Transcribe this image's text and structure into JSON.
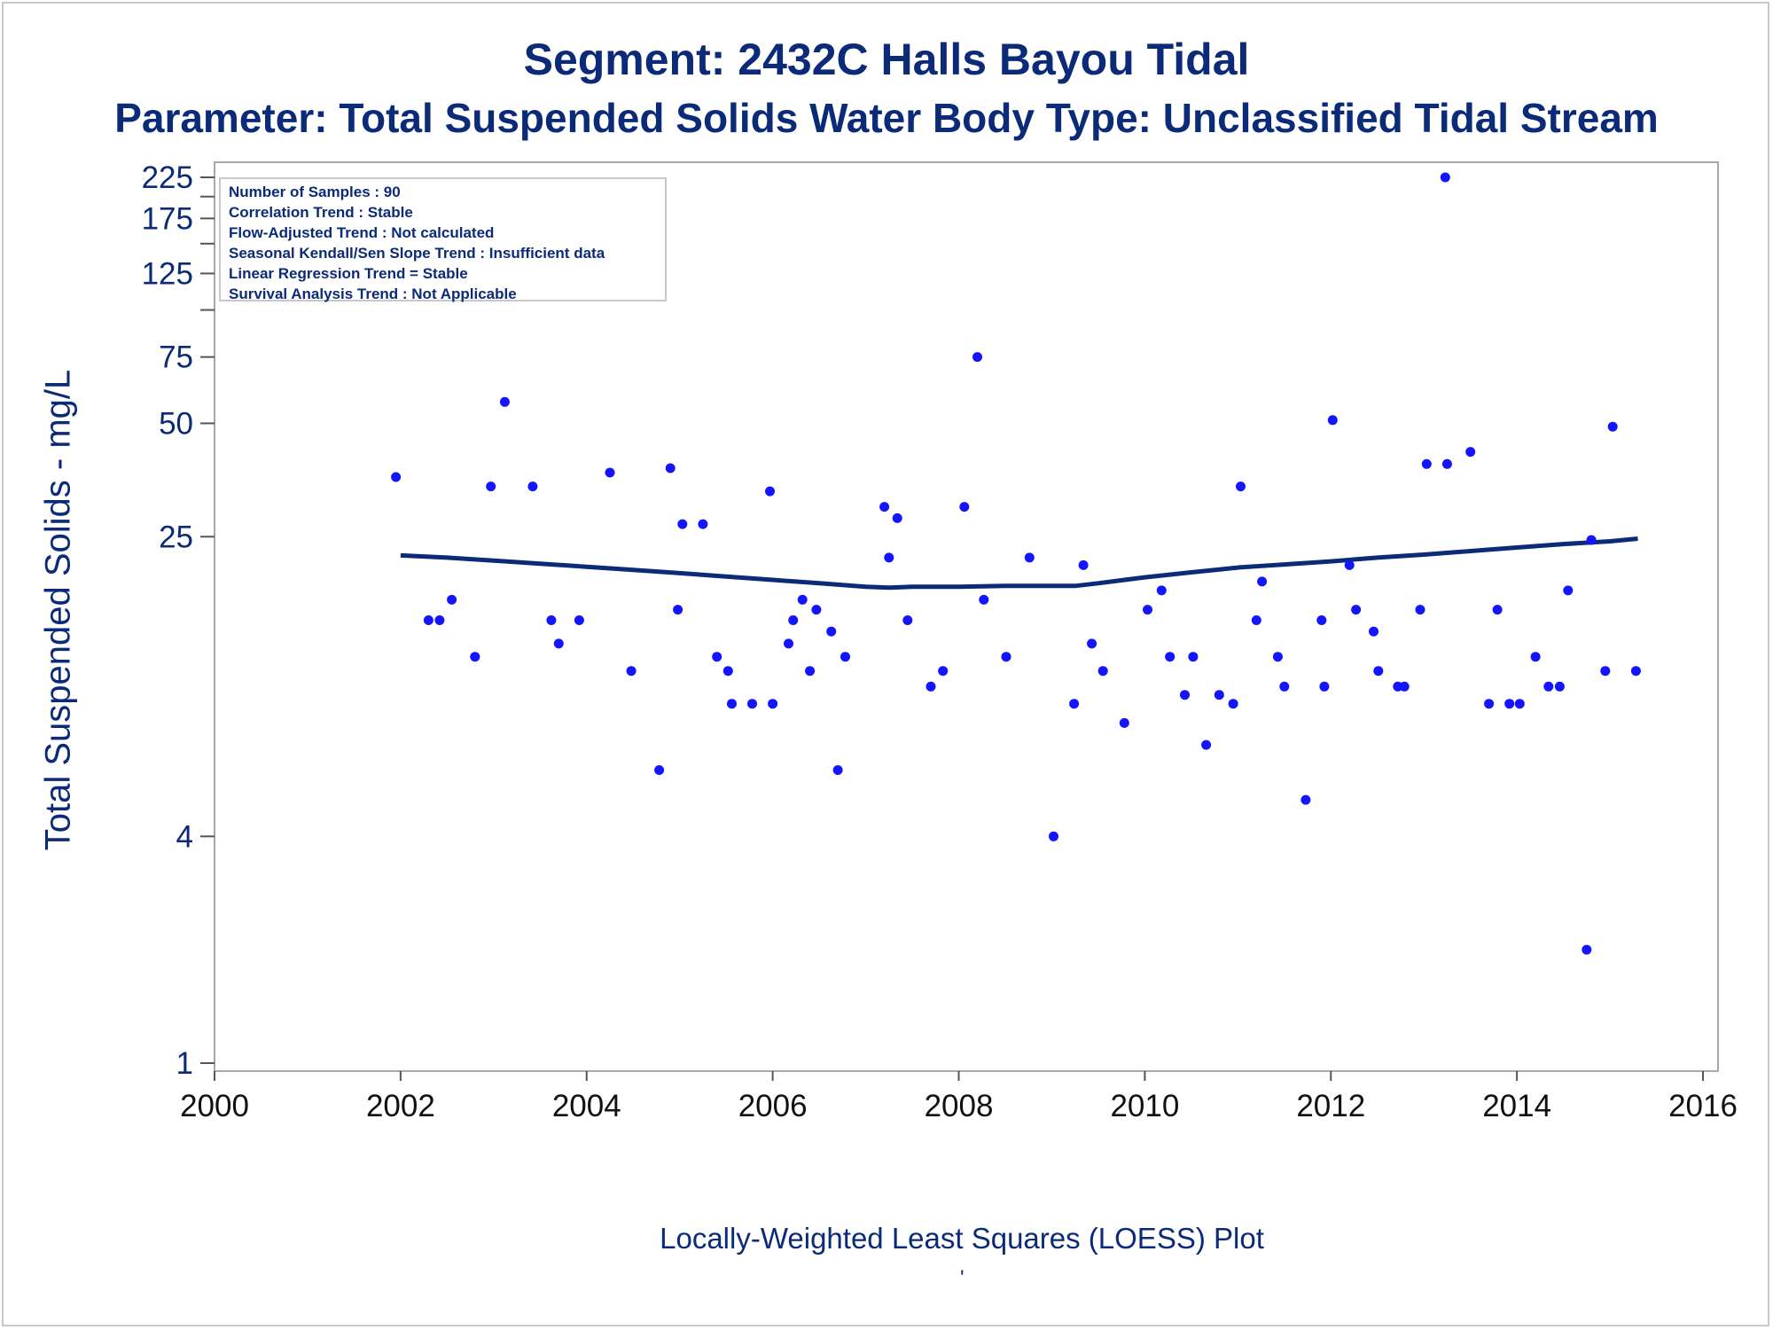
{
  "title": "Segment: 2432C  Halls Bayou Tidal",
  "subtitle": "Parameter: Total Suspended Solids   Water Body Type: Unclassified Tidal Stream",
  "footnote": "Locally-Weighted Least Squares (LOESS) Plot",
  "footnote_mark": "'",
  "stats": [
    "Number of Samples : 90",
    "Correlation Trend : Stable",
    "Flow-Adjusted Trend : Not calculated",
    "Seasonal Kendall/Sen Slope Trend : Insufficient data",
    "Linear Regression Trend = Stable",
    "Survival Analysis Trend : Not Applicable"
  ],
  "colors": {
    "text": "#0b2a78",
    "points": "#1414ff",
    "line": "#0b2a78",
    "frame": "#b0b0b0"
  },
  "chart_data": {
    "type": "scatter",
    "ylabel": "Total Suspended Solids - mg/L",
    "xlabel": "",
    "yscale": "log",
    "xlim": [
      2000,
      2016
    ],
    "ylim": [
      1,
      225
    ],
    "xticks": [
      2000,
      2002,
      2004,
      2006,
      2008,
      2010,
      2012,
      2014,
      2016
    ],
    "yticks": [
      1,
      4,
      25,
      50,
      75,
      125,
      175,
      225
    ],
    "yticks_minor": [
      100,
      150,
      200
    ],
    "grid": false,
    "series": [
      {
        "kind": "points",
        "x": [
          2001.95,
          2002.3,
          2002.42,
          2002.55,
          2002.8,
          2002.97,
          2003.12,
          2003.42,
          2003.62,
          2003.7,
          2003.92,
          2004.25,
          2004.48,
          2004.78,
          2004.9,
          2004.98,
          2005.03,
          2005.25,
          2005.4,
          2005.52,
          2005.56,
          2005.78,
          2005.97,
          2006.0,
          2006.17,
          2006.22,
          2006.32,
          2006.4,
          2006.47,
          2006.63,
          2006.7,
          2006.78,
          2007.2,
          2007.25,
          2007.34,
          2007.45,
          2007.7,
          2007.83,
          2008.06,
          2008.2,
          2008.27,
          2008.51,
          2008.76,
          2009.02,
          2009.24,
          2009.34,
          2009.43,
          2009.55,
          2009.78,
          2010.03,
          2010.18,
          2010.27,
          2010.43,
          2010.52,
          2010.66,
          2010.8,
          2010.95,
          2011.03,
          2011.2,
          2011.26,
          2011.43,
          2011.5,
          2011.73,
          2011.9,
          2011.93,
          2012.02,
          2012.2,
          2012.27,
          2012.46,
          2012.51,
          2012.72,
          2012.79,
          2012.96,
          2013.03,
          2013.23,
          2013.25,
          2013.5,
          2013.7,
          2013.79,
          2013.92,
          2014.03,
          2014.2,
          2014.34,
          2014.46,
          2014.55,
          2014.75,
          2014.8,
          2014.95,
          2015.03,
          2015.28
        ],
        "y": [
          36,
          15,
          15,
          17,
          12,
          34,
          57,
          34,
          15,
          13,
          15,
          37,
          11,
          6,
          38,
          16,
          27,
          27,
          12,
          11,
          9,
          9,
          33,
          9,
          13,
          15,
          17,
          11,
          16,
          14,
          6,
          12,
          30,
          22,
          28,
          15,
          10,
          11,
          30,
          75,
          17,
          12,
          22,
          4,
          9,
          21,
          13,
          11,
          8,
          16,
          18,
          12,
          9.5,
          12,
          7,
          9.5,
          9,
          34,
          15,
          19,
          12,
          10,
          5,
          15,
          10,
          51,
          21,
          16,
          14,
          11,
          10,
          10,
          16,
          39,
          225,
          39,
          42,
          9,
          16,
          9,
          9,
          12,
          10,
          10,
          18,
          2,
          24.5,
          11,
          49,
          11
        ]
      },
      {
        "kind": "loess",
        "x": [
          2002.0,
          2002.5,
          2003.0,
          2003.5,
          2004.0,
          2004.5,
          2005.0,
          2005.5,
          2006.0,
          2006.5,
          2007.0,
          2007.25,
          2007.5,
          2008.0,
          2008.5,
          2009.0,
          2009.25,
          2009.5,
          2010.0,
          2010.5,
          2011.0,
          2011.5,
          2012.0,
          2012.5,
          2013.0,
          2013.5,
          2014.0,
          2014.5,
          2015.0,
          2015.3
        ],
        "y": [
          22.3,
          22.0,
          21.6,
          21.2,
          20.8,
          20.4,
          20.0,
          19.6,
          19.2,
          18.8,
          18.4,
          18.3,
          18.4,
          18.4,
          18.5,
          18.5,
          18.5,
          18.8,
          19.5,
          20.1,
          20.7,
          21.1,
          21.5,
          22.0,
          22.4,
          22.9,
          23.4,
          23.9,
          24.3,
          24.7
        ]
      }
    ]
  }
}
